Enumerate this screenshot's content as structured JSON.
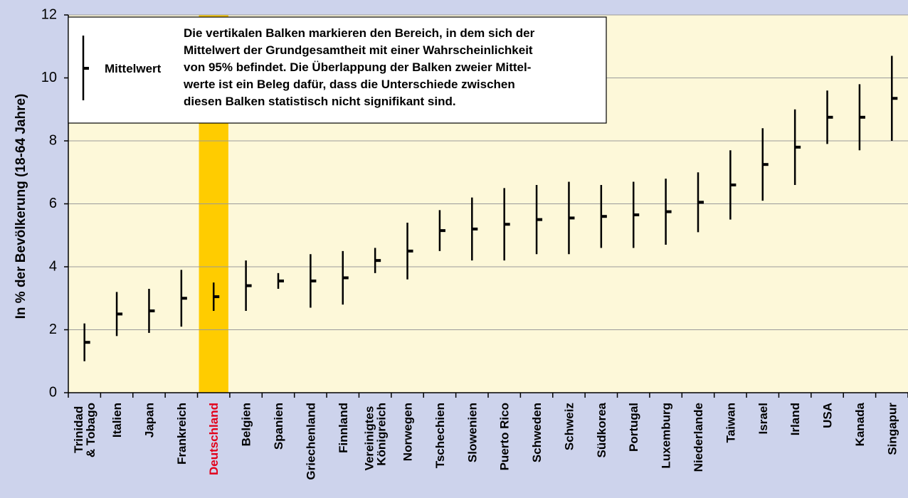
{
  "chart_data": {
    "type": "errorbar",
    "y_label": "In % der Bevölkerung (18-64 Jahre)",
    "categories": [
      "Trinidad & Tobago",
      "Italien",
      "Japan",
      "Frankreich",
      "Deutschland",
      "Belgien",
      "Spanien",
      "Griechenland",
      "Finnland",
      "Vereinigtes Königreich",
      "Norwegen",
      "Tschechien",
      "Slowenien",
      "Puerto Rico",
      "Schweden",
      "Schweiz",
      "Südkorea",
      "Portugal",
      "Luxemburg",
      "Niederlande",
      "Taiwan",
      "Israel",
      "Irland",
      "USA",
      "Kanada",
      "Singapur"
    ],
    "series": [
      {
        "name": "Mittelwert",
        "color": "#000000",
        "values": [
          1.6,
          2.5,
          2.6,
          3.0,
          3.05,
          3.4,
          3.55,
          3.55,
          3.65,
          4.2,
          4.5,
          5.15,
          5.2,
          5.35,
          5.5,
          5.55,
          5.6,
          5.65,
          5.75,
          6.05,
          6.6,
          7.25,
          7.8,
          8.75,
          8.75,
          9.35
        ],
        "low": [
          1.0,
          1.8,
          1.9,
          2.1,
          2.6,
          2.6,
          3.3,
          2.7,
          2.8,
          3.8,
          3.6,
          4.5,
          4.2,
          4.2,
          4.4,
          4.4,
          4.6,
          4.6,
          4.7,
          5.1,
          5.5,
          6.1,
          6.6,
          7.9,
          7.7,
          8.0
        ],
        "high": [
          2.2,
          3.2,
          3.3,
          3.9,
          3.5,
          4.2,
          3.8,
          4.4,
          4.5,
          4.6,
          5.4,
          5.8,
          6.2,
          6.5,
          6.6,
          6.7,
          6.6,
          6.7,
          6.8,
          7.0,
          7.7,
          8.4,
          9.0,
          9.6,
          9.8,
          10.7
        ]
      }
    ],
    "annotation": [
      "Die vertikalen Balken markieren den Bereich, in dem sich der",
      "Mittelwert der Grundgesamtheit mit einer Wahrscheinlichkeit",
      "von 95% befindet. Die Überlappung der Balken zweier Mittel-",
      "werte ist ein Beleg dafür, dass die Unterschiede zwischen",
      "diesen Balken statistisch nicht signifikant sind."
    ],
    "highlight_index": 4,
    "highlight_color": "#ffcc00",
    "highlight_label_color": "#e2001a",
    "ylim": [
      0,
      12
    ],
    "yticks": [
      0,
      2,
      4,
      6,
      8,
      10,
      12
    ],
    "grid": true,
    "plot_background": "#fdf8d9",
    "background": "#cdd3ec"
  }
}
